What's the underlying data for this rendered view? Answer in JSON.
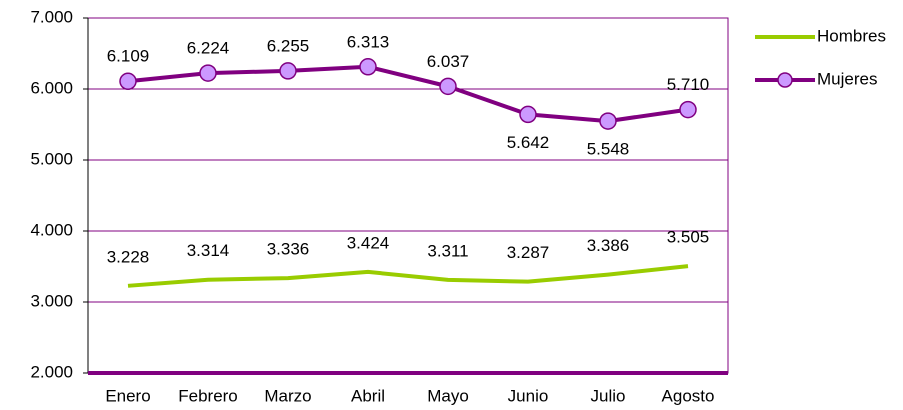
{
  "chart_data": {
    "type": "line",
    "categories": [
      "Enero",
      "Febrero",
      "Marzo",
      "Abril",
      "Mayo",
      "Junio",
      "Julio",
      "Agosto"
    ],
    "series": [
      {
        "name": "Hombres",
        "color": "#99cc00",
        "values": [
          3228,
          3314,
          3336,
          3424,
          3311,
          3287,
          3386,
          3505
        ],
        "value_labels": [
          "3.228",
          "3.314",
          "3.336",
          "3.424",
          "3.311",
          "3.287",
          "3.386",
          "3.505"
        ]
      },
      {
        "name": "Mujeres",
        "color": "#800080",
        "marker_color": "#cc99ff",
        "values": [
          6109,
          6224,
          6255,
          6313,
          6037,
          5642,
          5548,
          5710
        ],
        "value_labels": [
          "6.109",
          "6.224",
          "6.255",
          "6.313",
          "6.037",
          "5.642",
          "5.548",
          "5.710"
        ]
      }
    ],
    "ylim": [
      2000,
      7000
    ],
    "yticks": [
      {
        "value": 2000,
        "label": "2.000"
      },
      {
        "value": 3000,
        "label": "3.000"
      },
      {
        "value": 4000,
        "label": "4.000"
      },
      {
        "value": 5000,
        "label": "5.000"
      },
      {
        "value": 6000,
        "label": "6.000"
      },
      {
        "value": 7000,
        "label": "7.000"
      }
    ],
    "grid": true,
    "legend": "right"
  }
}
